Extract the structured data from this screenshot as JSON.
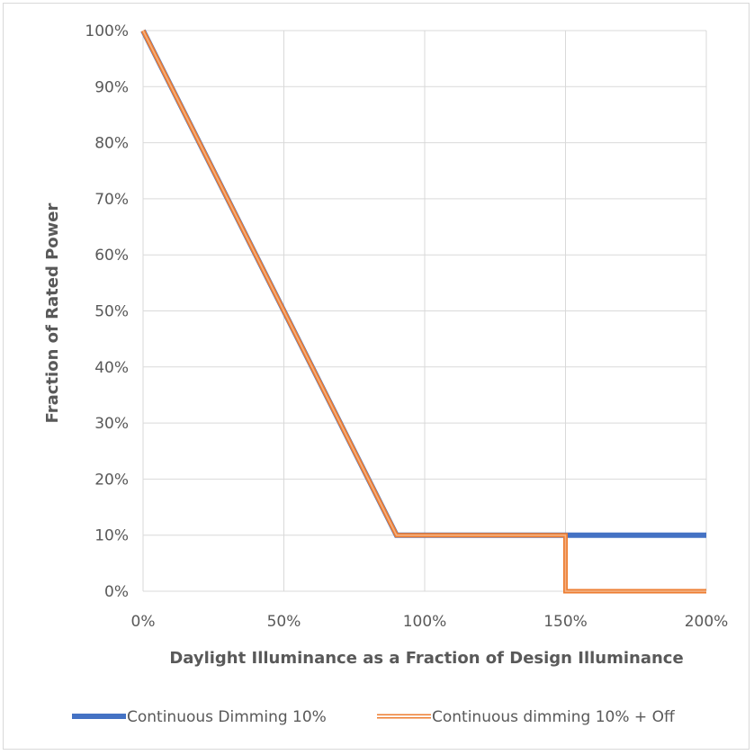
{
  "chart_data": {
    "type": "line",
    "title": "",
    "xlabel": "Daylight Illuminance as a Fraction of Design Illuminance",
    "ylabel": "Fraction of Rated Power",
    "xlim": [
      0,
      2
    ],
    "ylim": [
      0,
      1
    ],
    "x_ticks": [
      0,
      0.5,
      1,
      1.5,
      2
    ],
    "x_tick_labels": [
      "0%",
      "50%",
      "100%",
      "150%",
      "200%"
    ],
    "y_ticks": [
      0,
      0.1,
      0.2,
      0.3,
      0.4,
      0.5,
      0.6,
      0.7,
      0.8,
      0.9,
      1
    ],
    "y_tick_labels": [
      "0%",
      "10%",
      "20%",
      "30%",
      "40%",
      "50%",
      "60%",
      "70%",
      "80%",
      "90%",
      "100%"
    ],
    "grid": true,
    "legend_position": "bottom",
    "series": [
      {
        "name": "Continuous Dimming 10%",
        "color": "#4472c4",
        "style": "solid-thick",
        "points": [
          [
            0,
            1
          ],
          [
            0.9,
            0.1
          ],
          [
            2,
            0.1
          ]
        ]
      },
      {
        "name": "Continuous dimming 10% + Off",
        "color": "#ed7d31",
        "style": "double-outline",
        "points": [
          [
            0,
            1
          ],
          [
            0.9,
            0.1
          ],
          [
            1.5,
            0.1
          ],
          [
            1.5,
            0
          ],
          [
            2,
            0
          ]
        ]
      }
    ]
  }
}
